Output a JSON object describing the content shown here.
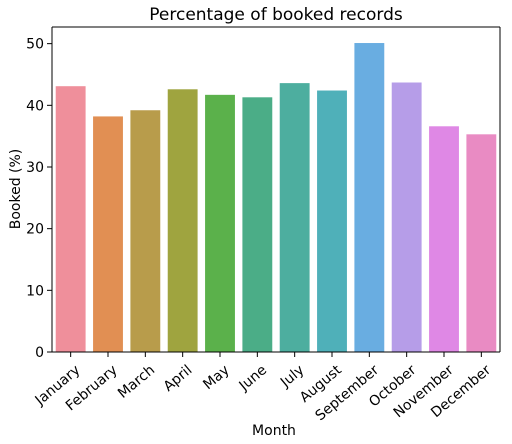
{
  "chart_data": {
    "type": "bar",
    "title": "Percentage of booked records",
    "xlabel": "Month",
    "ylabel": "Booked (%)",
    "categories": [
      "January",
      "February",
      "March",
      "April",
      "May",
      "June",
      "July",
      "August",
      "September",
      "October",
      "November",
      "December"
    ],
    "values": [
      43.1,
      38.2,
      39.2,
      42.6,
      41.7,
      41.3,
      43.6,
      42.4,
      50.1,
      43.7,
      36.6,
      35.3
    ],
    "colors": [
      "#ef8f9b",
      "#e18f53",
      "#b89c4b",
      "#9fa43f",
      "#5bb14b",
      "#4bad87",
      "#4dae9f",
      "#4fb0b9",
      "#69ade1",
      "#b69de8",
      "#df88e5",
      "#e98bc3"
    ],
    "ylim": [
      0,
      52.7
    ],
    "yticks": [
      0,
      10,
      20,
      30,
      40,
      50
    ],
    "grid": false,
    "legend": "none"
  }
}
